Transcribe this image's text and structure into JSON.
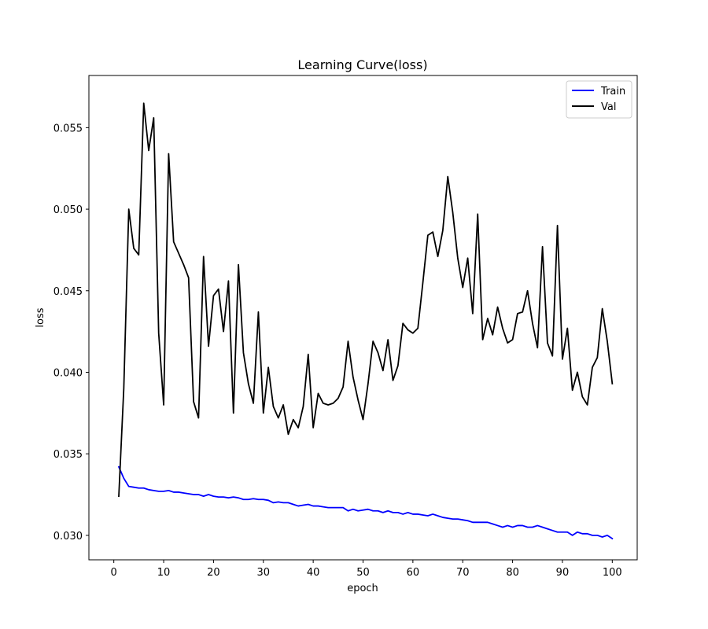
{
  "chart_data": {
    "type": "line",
    "title": "Learning Curve(loss)",
    "xlabel": "epoch",
    "ylabel": "loss",
    "xlim": [
      -5,
      105
    ],
    "ylim": [
      0.0285,
      0.0582
    ],
    "xticks": [
      0,
      10,
      20,
      30,
      40,
      50,
      60,
      70,
      80,
      90,
      100
    ],
    "yticks": [
      0.03,
      0.035,
      0.04,
      0.045,
      0.05,
      0.055
    ],
    "ytick_labels": [
      "0.030",
      "0.035",
      "0.040",
      "0.045",
      "0.050",
      "0.055"
    ],
    "grid": false,
    "legend_position": "top-right",
    "series": [
      {
        "name": "Train",
        "color": "#0000ff",
        "x": [
          1,
          2,
          3,
          4,
          5,
          6,
          7,
          8,
          9,
          10,
          11,
          12,
          13,
          14,
          15,
          16,
          17,
          18,
          19,
          20,
          21,
          22,
          23,
          24,
          25,
          26,
          27,
          28,
          29,
          30,
          31,
          32,
          33,
          34,
          35,
          36,
          37,
          38,
          39,
          40,
          41,
          42,
          43,
          44,
          45,
          46,
          47,
          48,
          49,
          50,
          51,
          52,
          53,
          54,
          55,
          56,
          57,
          58,
          59,
          60,
          61,
          62,
          63,
          64,
          65,
          66,
          67,
          68,
          69,
          70,
          71,
          72,
          73,
          74,
          75,
          76,
          77,
          78,
          79,
          80,
          81,
          82,
          83,
          84,
          85,
          86,
          87,
          88,
          89,
          90,
          91,
          92,
          93,
          94,
          95,
          96,
          97,
          98,
          99,
          100
        ],
        "values": [
          0.0342,
          0.0335,
          0.033,
          0.03295,
          0.0329,
          0.0329,
          0.0328,
          0.03275,
          0.0327,
          0.0327,
          0.03275,
          0.03265,
          0.03265,
          0.0326,
          0.03255,
          0.0325,
          0.0325,
          0.0324,
          0.0325,
          0.0324,
          0.03235,
          0.03235,
          0.0323,
          0.03235,
          0.0323,
          0.0322,
          0.0322,
          0.03225,
          0.0322,
          0.0322,
          0.03215,
          0.032,
          0.03205,
          0.032,
          0.032,
          0.0319,
          0.0318,
          0.03185,
          0.0319,
          0.0318,
          0.0318,
          0.03175,
          0.0317,
          0.0317,
          0.0317,
          0.0317,
          0.0315,
          0.0316,
          0.0315,
          0.03155,
          0.0316,
          0.0315,
          0.0315,
          0.0314,
          0.0315,
          0.0314,
          0.0314,
          0.0313,
          0.0314,
          0.0313,
          0.0313,
          0.03125,
          0.0312,
          0.0313,
          0.0312,
          0.0311,
          0.03105,
          0.031,
          0.031,
          0.03095,
          0.0309,
          0.0308,
          0.0308,
          0.0308,
          0.0308,
          0.0307,
          0.0306,
          0.0305,
          0.0306,
          0.0305,
          0.0306,
          0.0306,
          0.0305,
          0.0305,
          0.0306,
          0.0305,
          0.0304,
          0.0303,
          0.0302,
          0.0302,
          0.0302,
          0.03,
          0.0302,
          0.0301,
          0.0301,
          0.03,
          0.03,
          0.0299,
          0.03,
          0.0298
        ]
      },
      {
        "name": "Val",
        "color": "#000000",
        "x": [
          1,
          2,
          3,
          4,
          5,
          6,
          7,
          8,
          9,
          10,
          11,
          12,
          13,
          14,
          15,
          16,
          17,
          18,
          19,
          20,
          21,
          22,
          23,
          24,
          25,
          26,
          27,
          28,
          29,
          30,
          31,
          32,
          33,
          34,
          35,
          36,
          37,
          38,
          39,
          40,
          41,
          42,
          43,
          44,
          45,
          46,
          47,
          48,
          49,
          50,
          51,
          52,
          53,
          54,
          55,
          56,
          57,
          58,
          59,
          60,
          61,
          62,
          63,
          64,
          65,
          66,
          67,
          68,
          69,
          70,
          71,
          72,
          73,
          74,
          75,
          76,
          77,
          78,
          79,
          80,
          81,
          82,
          83,
          84,
          85,
          86,
          87,
          88,
          89,
          90,
          91,
          92,
          93,
          94,
          95,
          96,
          97,
          98,
          99,
          100
        ],
        "values": [
          0.0324,
          0.039,
          0.05,
          0.0476,
          0.0472,
          0.0565,
          0.0536,
          0.0556,
          0.0424,
          0.038,
          0.0534,
          0.048,
          0.0473,
          0.0466,
          0.0458,
          0.0382,
          0.0372,
          0.0471,
          0.0416,
          0.0447,
          0.0451,
          0.0425,
          0.0456,
          0.0375,
          0.0466,
          0.0412,
          0.0393,
          0.0381,
          0.0437,
          0.0375,
          0.0403,
          0.0379,
          0.0372,
          0.038,
          0.0362,
          0.0371,
          0.0366,
          0.0379,
          0.0411,
          0.0366,
          0.0387,
          0.0381,
          0.038,
          0.0381,
          0.0384,
          0.0391,
          0.0419,
          0.0397,
          0.0383,
          0.0371,
          0.0393,
          0.0419,
          0.0412,
          0.0401,
          0.042,
          0.0395,
          0.0404,
          0.043,
          0.0426,
          0.0424,
          0.0427,
          0.0455,
          0.0484,
          0.0486,
          0.0471,
          0.0487,
          0.052,
          0.0498,
          0.047,
          0.0452,
          0.047,
          0.0436,
          0.0497,
          0.042,
          0.0433,
          0.0423,
          0.044,
          0.0427,
          0.0418,
          0.042,
          0.0436,
          0.0437,
          0.045,
          0.043,
          0.0415,
          0.0477,
          0.0418,
          0.041,
          0.049,
          0.0408,
          0.0427,
          0.0389,
          0.04,
          0.0385,
          0.038,
          0.0403,
          0.0409,
          0.0439,
          0.0419,
          0.0393
        ]
      }
    ]
  }
}
